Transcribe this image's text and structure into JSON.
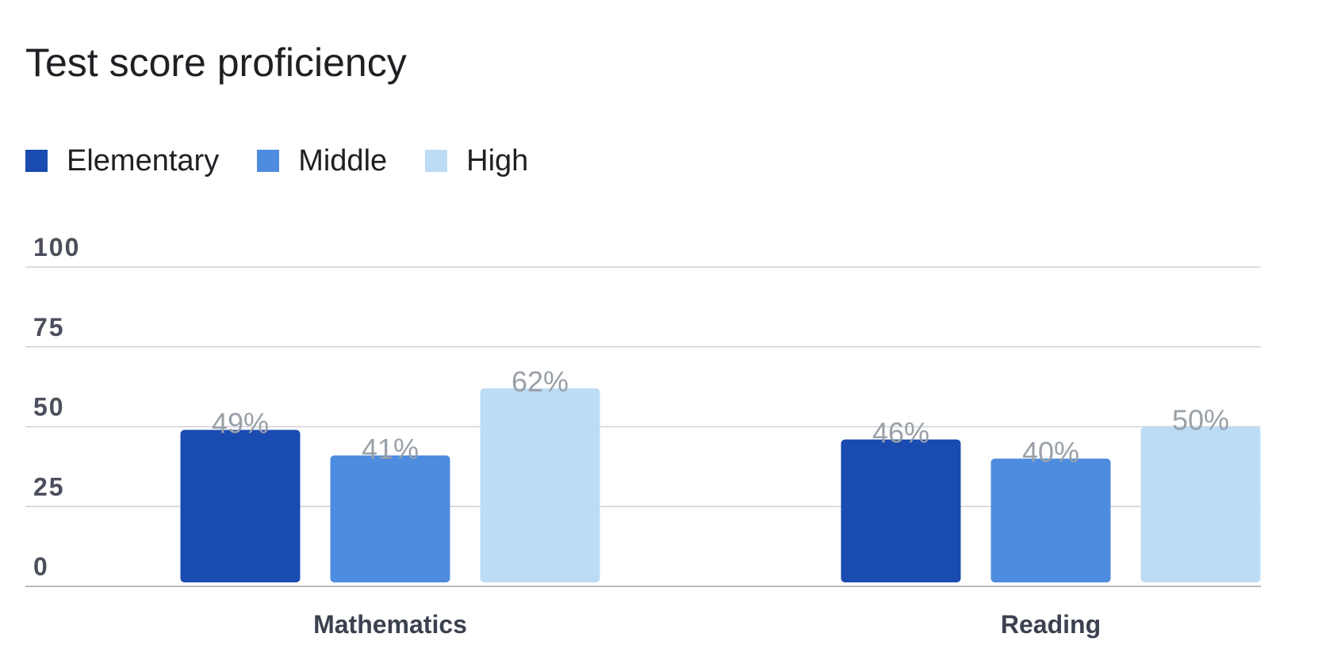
{
  "chart_data": {
    "type": "bar",
    "title": "Test score proficiency",
    "xlabel": "",
    "ylabel": "",
    "categories": [
      "Mathematics",
      "Reading"
    ],
    "series": [
      {
        "name": "Elementary",
        "color": "#1a4bb0",
        "values": [
          49,
          46
        ],
        "labels": [
          "49%",
          "46%"
        ]
      },
      {
        "name": "Middle",
        "color": "#4e8ce0",
        "values": [
          41,
          40
        ],
        "labels": [
          "41%",
          "40%"
        ]
      },
      {
        "name": "High",
        "color": "#bcdcf6",
        "values": [
          62,
          50
        ],
        "labels": [
          "62%",
          "50%"
        ]
      }
    ],
    "ylim": [
      0,
      100
    ],
    "yticks": [
      "0",
      "25",
      "50",
      "75",
      "100"
    ],
    "grid": true,
    "legend_position": "top-left",
    "colors": {
      "grid": "#cfd2d6",
      "axis": "#b7bbc0"
    }
  }
}
